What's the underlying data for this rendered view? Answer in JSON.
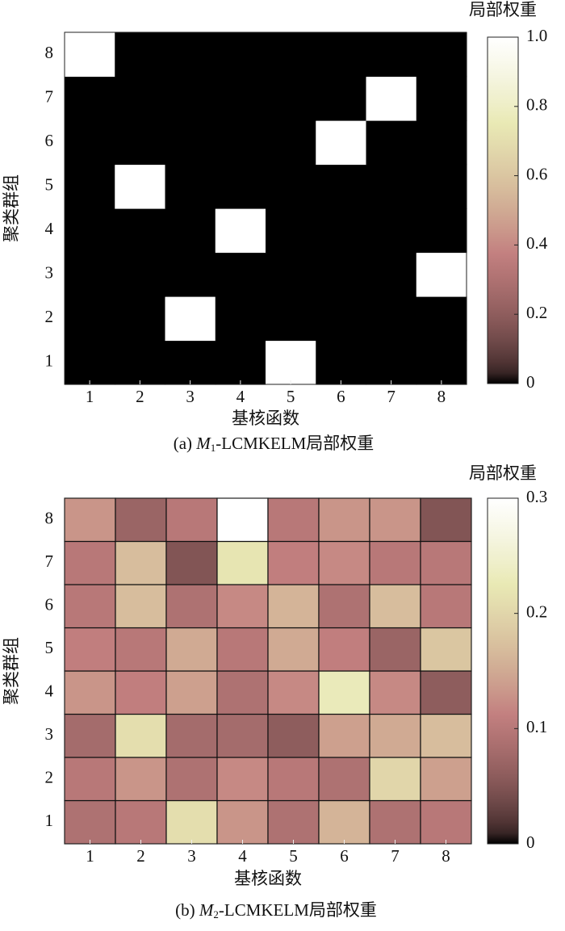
{
  "chart_data": [
    {
      "type": "heatmap",
      "x_label": "基核函数",
      "y_label": "聚类群组",
      "caption": {
        "prefix": "(a) ",
        "var": "M",
        "sub": "1",
        "suffix": "-LCMKELM局部权重"
      },
      "colorbar_title": "局部权重",
      "x_categories": [
        "1",
        "2",
        "3",
        "4",
        "5",
        "6",
        "7",
        "8"
      ],
      "y_categories": [
        "1",
        "2",
        "3",
        "4",
        "5",
        "6",
        "7",
        "8"
      ],
      "values": [
        [
          0,
          0,
          0,
          0,
          1,
          0,
          0,
          0
        ],
        [
          0,
          0,
          1,
          0,
          0,
          0,
          0,
          0
        ],
        [
          0,
          0,
          0,
          0,
          0,
          0,
          0,
          1
        ],
        [
          0,
          0,
          0,
          1,
          0,
          0,
          0,
          0
        ],
        [
          0,
          1,
          0,
          0,
          0,
          0,
          0,
          0
        ],
        [
          0,
          0,
          0,
          0,
          0,
          1,
          0,
          0
        ],
        [
          0,
          0,
          0,
          0,
          0,
          0,
          1,
          0
        ],
        [
          1,
          0,
          0,
          0,
          0,
          0,
          0,
          0
        ]
      ],
      "colormap": "pink",
      "cell_borders": false,
      "clim": [
        0,
        1
      ],
      "cticks": [
        0,
        0.2,
        0.4,
        0.6,
        0.8,
        {
          "value": 1,
          "label": "1.0"
        }
      ]
    },
    {
      "type": "heatmap",
      "x_label": "基核函数",
      "y_label": "聚类群组",
      "caption": {
        "prefix": "(b) ",
        "var": "M",
        "sub": "2",
        "suffix": "-LCMKELM局部权重"
      },
      "colorbar_title": "局部权重",
      "x_categories": [
        "1",
        "2",
        "3",
        "4",
        "5",
        "6",
        "7",
        "8"
      ],
      "y_categories": [
        "1",
        "2",
        "3",
        "4",
        "5",
        "6",
        "7",
        "8"
      ],
      "values": [
        [
          0.09,
          0.1,
          0.21,
          0.13,
          0.09,
          0.16,
          0.09,
          0.1
        ],
        [
          0.1,
          0.13,
          0.09,
          0.12,
          0.1,
          0.09,
          0.2,
          0.14
        ],
        [
          0.08,
          0.21,
          0.08,
          0.08,
          0.06,
          0.14,
          0.15,
          0.17
        ],
        [
          0.13,
          0.11,
          0.14,
          0.09,
          0.12,
          0.23,
          0.12,
          0.06
        ],
        [
          0.11,
          0.1,
          0.15,
          0.1,
          0.15,
          0.11,
          0.07,
          0.18
        ],
        [
          0.1,
          0.17,
          0.09,
          0.12,
          0.16,
          0.09,
          0.17,
          0.1
        ],
        [
          0.1,
          0.17,
          0.05,
          0.22,
          0.11,
          0.12,
          0.1,
          0.1
        ],
        [
          0.13,
          0.07,
          0.1,
          0.3,
          0.1,
          0.13,
          0.13,
          0.05
        ]
      ],
      "colormap": "pink",
      "cell_borders": true,
      "clim": [
        0,
        0.3
      ],
      "cticks": [
        0,
        0.1,
        0.2,
        0.3
      ]
    }
  ]
}
